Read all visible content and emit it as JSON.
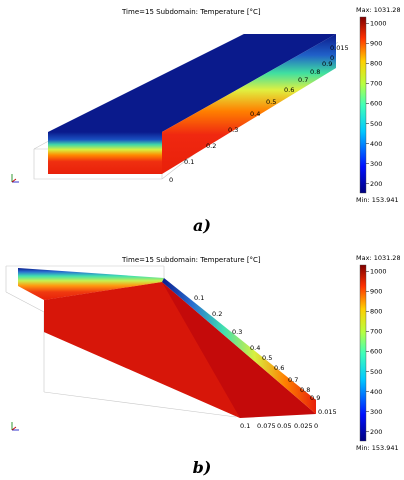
{
  "panels": [
    {
      "title": "Time=15   Subdomain: Temperature [°C]",
      "max_label": "Max: 1031.289",
      "min_label": "Min: 153.941",
      "colorbar_ticks": [
        "1000",
        "900",
        "800",
        "700",
        "600",
        "500",
        "400",
        "300",
        "200"
      ],
      "axis_ticks": [
        "0",
        "0.1",
        "0.2",
        "0.3",
        "0.4",
        "0.5",
        "0.6",
        "0.7",
        "0.8",
        "0.9",
        "0.015",
        "0"
      ],
      "caption": "a)"
    },
    {
      "title": "Time=15   Subdomain: Temperature [°C]",
      "max_label": "Max: 1031.289",
      "min_label": "Min: 153.941",
      "colorbar_ticks": [
        "1000",
        "900",
        "800",
        "700",
        "600",
        "500",
        "400",
        "300",
        "200"
      ],
      "length_ticks": [
        "0.1",
        "0.2",
        "0.3",
        "0.4",
        "0.5",
        "0.6",
        "0.7",
        "0.8",
        "0.9"
      ],
      "bottom_ticks": [
        "0.1",
        "0.075",
        "0.05",
        "0.025",
        "0"
      ],
      "side_tick": "0.015",
      "caption": "b)"
    }
  ],
  "colors": {
    "cold": "#0a1a8c",
    "hot": "#e8200a",
    "dark_hot": "#c40a0a"
  }
}
